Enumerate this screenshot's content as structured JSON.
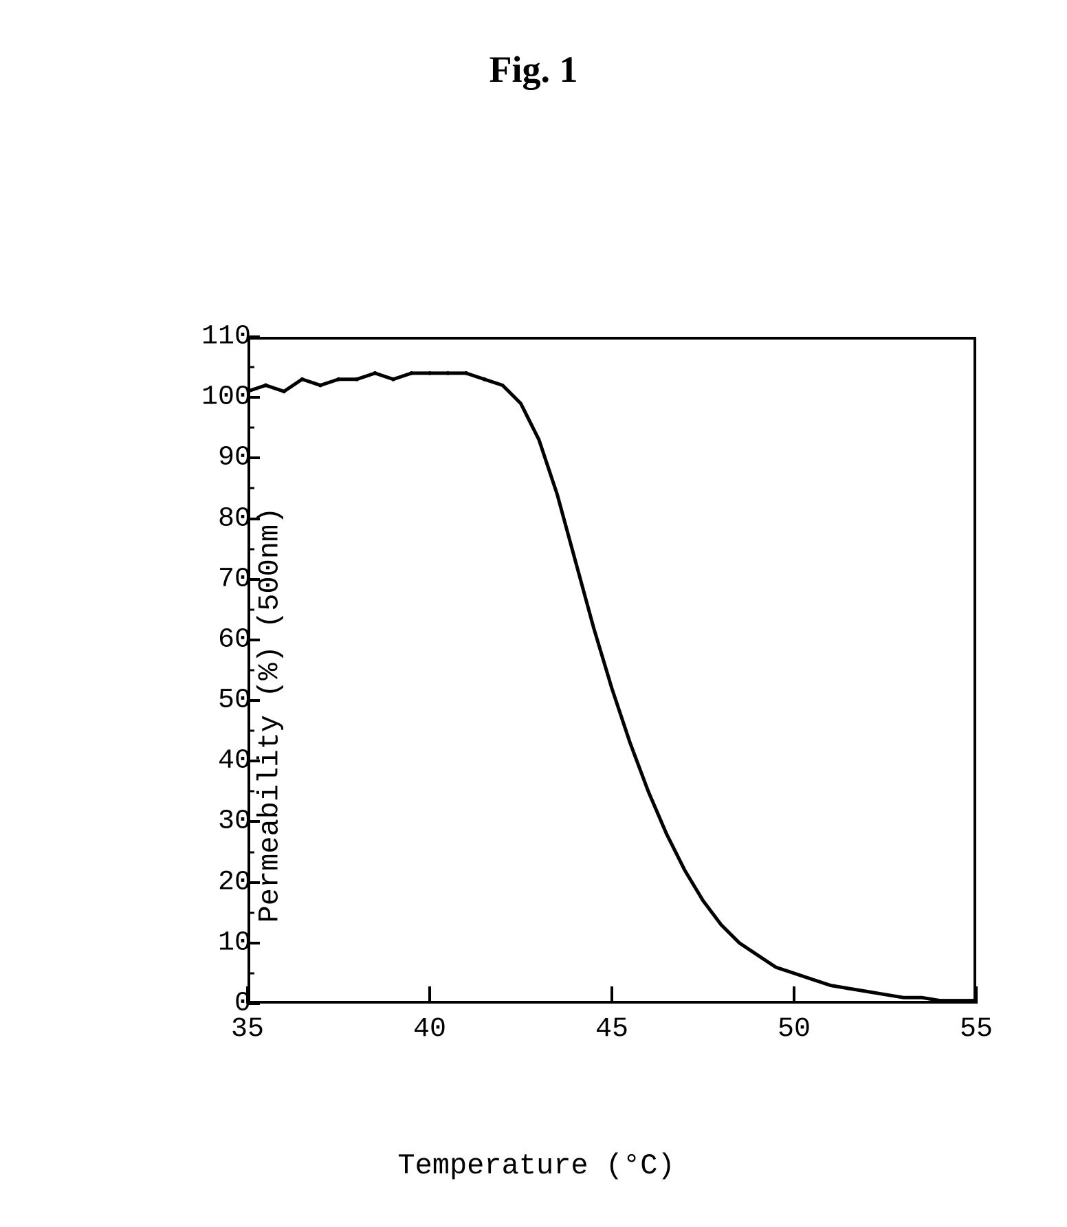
{
  "figure": {
    "title": "Fig. 1",
    "title_fontsize": 54,
    "title_fontweight": "bold"
  },
  "chart": {
    "type": "line",
    "xlabel": "Temperature (°C)",
    "ylabel": "Permeability (%) (500nm)",
    "label_fontsize": 42,
    "tick_fontsize": 40,
    "xlim": [
      35,
      55
    ],
    "ylim": [
      0,
      110
    ],
    "xticks": [
      35,
      40,
      45,
      50,
      55
    ],
    "xtick_labels": [
      "35",
      "40",
      "45",
      "50",
      "55"
    ],
    "yticks": [
      0,
      10,
      20,
      30,
      40,
      50,
      60,
      70,
      80,
      90,
      100,
      110
    ],
    "ytick_labels": [
      "0",
      "10",
      "20",
      "30",
      "40",
      "50",
      "60",
      "70",
      "80",
      "90",
      "100",
      "110"
    ],
    "y_minor_ticks_per_major": 1,
    "background_color": "#ffffff",
    "axis_color": "#000000",
    "line_color": "#000000",
    "line_width": 5,
    "border_width": 4,
    "data_points": [
      {
        "x": 35.0,
        "y": 101
      },
      {
        "x": 35.5,
        "y": 102
      },
      {
        "x": 36.0,
        "y": 101
      },
      {
        "x": 36.5,
        "y": 103
      },
      {
        "x": 37.0,
        "y": 102
      },
      {
        "x": 37.5,
        "y": 103
      },
      {
        "x": 38.0,
        "y": 103
      },
      {
        "x": 38.5,
        "y": 104
      },
      {
        "x": 39.0,
        "y": 103
      },
      {
        "x": 39.5,
        "y": 104
      },
      {
        "x": 40.0,
        "y": 104
      },
      {
        "x": 40.5,
        "y": 104
      },
      {
        "x": 41.0,
        "y": 104
      },
      {
        "x": 41.5,
        "y": 103
      },
      {
        "x": 42.0,
        "y": 102
      },
      {
        "x": 42.5,
        "y": 99
      },
      {
        "x": 43.0,
        "y": 93
      },
      {
        "x": 43.5,
        "y": 84
      },
      {
        "x": 44.0,
        "y": 73
      },
      {
        "x": 44.5,
        "y": 62
      },
      {
        "x": 45.0,
        "y": 52
      },
      {
        "x": 45.5,
        "y": 43
      },
      {
        "x": 46.0,
        "y": 35
      },
      {
        "x": 46.5,
        "y": 28
      },
      {
        "x": 47.0,
        "y": 22
      },
      {
        "x": 47.5,
        "y": 17
      },
      {
        "x": 48.0,
        "y": 13
      },
      {
        "x": 48.5,
        "y": 10
      },
      {
        "x": 49.0,
        "y": 8
      },
      {
        "x": 49.5,
        "y": 6
      },
      {
        "x": 50.0,
        "y": 5
      },
      {
        "x": 50.5,
        "y": 4
      },
      {
        "x": 51.0,
        "y": 3
      },
      {
        "x": 51.5,
        "y": 2.5
      },
      {
        "x": 52.0,
        "y": 2
      },
      {
        "x": 52.5,
        "y": 1.5
      },
      {
        "x": 53.0,
        "y": 1
      },
      {
        "x": 53.5,
        "y": 1
      },
      {
        "x": 54.0,
        "y": 0.5
      },
      {
        "x": 54.5,
        "y": 0.5
      },
      {
        "x": 55.0,
        "y": 0.5
      }
    ]
  }
}
